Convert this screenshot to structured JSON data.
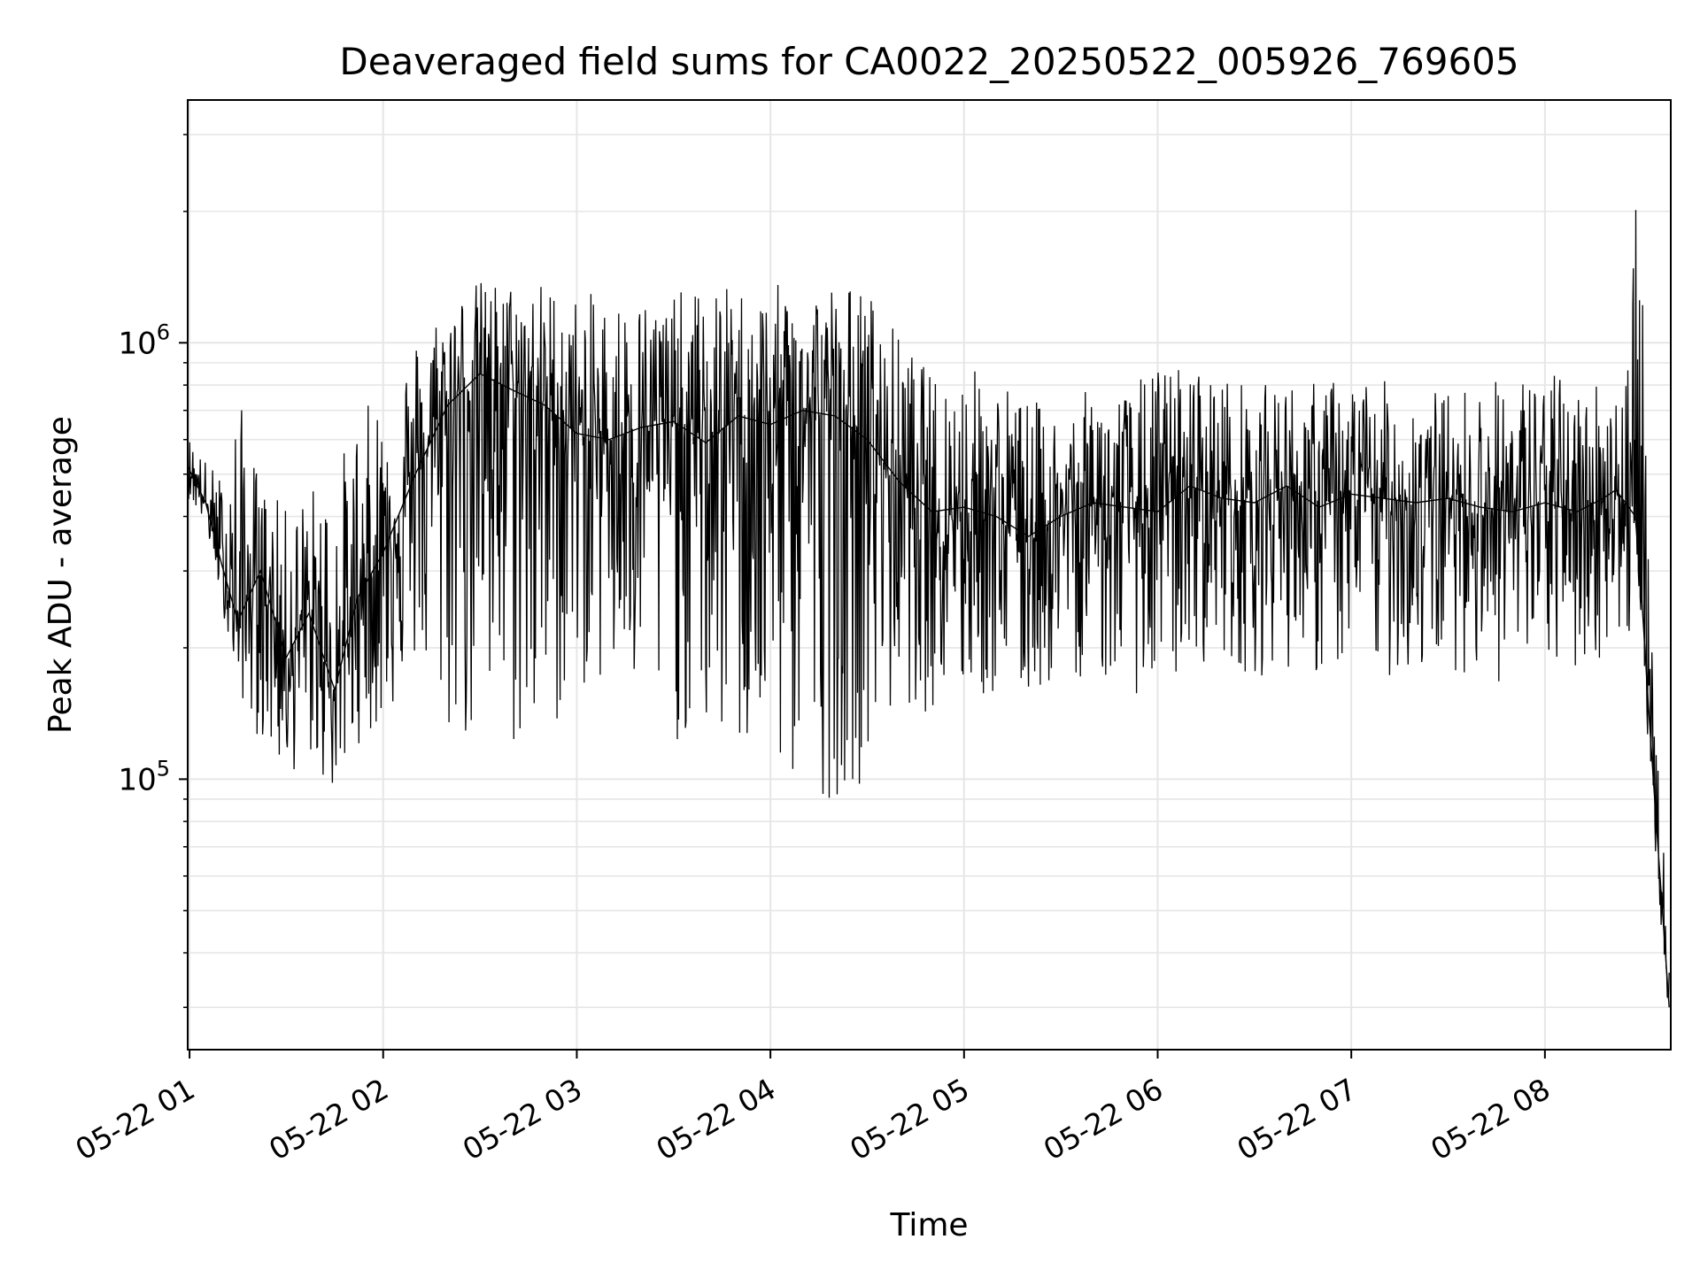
{
  "chart_data": {
    "type": "line",
    "title": "Deaveraged field sums for CA0022_20250522_005926_769605",
    "xlabel": "Time",
    "ylabel": "Peak ADU - average",
    "yscale": "log",
    "grid": true,
    "line_color": "#000000",
    "grid_color": "#e6e6e6",
    "xlim": [
      "2025-05-22T00:59:26",
      "2025-05-22T08:39:00"
    ],
    "ylim": [
      24000,
      3600000
    ],
    "x_tick_labels": [
      "05-22 01",
      "05-22 02",
      "05-22 03",
      "05-22 04",
      "05-22 05",
      "05-22 06",
      "05-22 07",
      "05-22 08"
    ],
    "x_ticks": [
      "2025-05-22T01:00",
      "2025-05-22T02:00",
      "2025-05-22T03:00",
      "2025-05-22T04:00",
      "2025-05-22T05:00",
      "2025-05-22T06:00",
      "2025-05-22T07:00",
      "2025-05-22T08:00"
    ],
    "y_ticks": [
      100000,
      1000000
    ],
    "y_tick_labels": [
      {
        "base": "10",
        "exp": "5"
      },
      {
        "base": "10",
        "exp": "6"
      }
    ],
    "series": [
      {
        "x": [
          "2025-05-22T00:59:30",
          "2025-05-22T01:05:00",
          "2025-05-22T01:10:00",
          "2025-05-22T01:15:00",
          "2025-05-22T01:22:00",
          "2025-05-22T01:30:00",
          "2025-05-22T01:37:00",
          "2025-05-22T01:45:00",
          "2025-05-22T01:52:00",
          "2025-05-22T02:00:00",
          "2025-05-22T02:10:00",
          "2025-05-22T02:20:00",
          "2025-05-22T02:30:00",
          "2025-05-22T02:40:00",
          "2025-05-22T02:50:00",
          "2025-05-22T03:00:00",
          "2025-05-22T03:10:00",
          "2025-05-22T03:20:00",
          "2025-05-22T03:30:00",
          "2025-05-22T03:40:00",
          "2025-05-22T03:50:00",
          "2025-05-22T04:00:00",
          "2025-05-22T04:10:00",
          "2025-05-22T04:20:00",
          "2025-05-22T04:30:00",
          "2025-05-22T04:40:00",
          "2025-05-22T04:50:00",
          "2025-05-22T05:00:00",
          "2025-05-22T05:10:00",
          "2025-05-22T05:20:00",
          "2025-05-22T05:30:00",
          "2025-05-22T05:40:00",
          "2025-05-22T05:50:00",
          "2025-05-22T06:00:00",
          "2025-05-22T06:10:00",
          "2025-05-22T06:20:00",
          "2025-05-22T06:30:00",
          "2025-05-22T06:40:00",
          "2025-05-22T06:50:00",
          "2025-05-22T07:00:00",
          "2025-05-22T07:10:00",
          "2025-05-22T07:20:00",
          "2025-05-22T07:30:00",
          "2025-05-22T07:40:00",
          "2025-05-22T07:50:00",
          "2025-05-22T08:00:00",
          "2025-05-22T08:10:00",
          "2025-05-22T08:18:00",
          "2025-05-22T08:22:00",
          "2025-05-22T08:26:00",
          "2025-05-22T08:28:00",
          "2025-05-22T08:30:00",
          "2025-05-22T08:32:00",
          "2025-05-22T08:34:00",
          "2025-05-22T08:36:00",
          "2025-05-22T08:38:30"
        ],
        "y": [
          520000,
          430000,
          310000,
          230000,
          300000,
          190000,
          240000,
          160000,
          260000,
          330000,
          500000,
          720000,
          850000,
          780000,
          720000,
          620000,
          600000,
          640000,
          660000,
          590000,
          680000,
          650000,
          700000,
          680000,
          600000,
          480000,
          410000,
          420000,
          400000,
          360000,
          400000,
          430000,
          420000,
          410000,
          470000,
          440000,
          430000,
          470000,
          420000,
          450000,
          440000,
          430000,
          440000,
          420000,
          410000,
          430000,
          410000,
          440000,
          460000,
          420000,
          400000,
          260000,
          150000,
          90000,
          55000,
          30000
        ],
        "y_low": [
          440000,
          380000,
          250000,
          160000,
          120000,
          100000,
          110000,
          90000,
          120000,
          130000,
          180000,
          120000,
          110000,
          110000,
          110000,
          160000,
          160000,
          140000,
          120000,
          120000,
          110000,
          100000,
          90000,
          90000,
          100000,
          150000,
          140000,
          150000,
          150000,
          150000,
          170000,
          170000,
          160000,
          150000,
          180000,
          190000,
          170000,
          180000,
          170000,
          180000,
          170000,
          170000,
          180000,
          170000,
          160000,
          180000,
          170000,
          190000,
          200000,
          200000,
          360000,
          210000,
          120000,
          70000,
          46000,
          28000
        ],
        "y_high": [
          620000,
          540000,
          500000,
          780000,
          480000,
          420000,
          470000,
          520000,
          680000,
          800000,
          1050000,
          1300000,
          1400000,
          1400000,
          1400000,
          1300000,
          1300000,
          1300000,
          1300000,
          1350000,
          1350000,
          1350000,
          1400000,
          1400000,
          1350000,
          1050000,
          850000,
          900000,
          850000,
          750000,
          700000,
          800000,
          780000,
          900000,
          900000,
          850000,
          800000,
          820000,
          820000,
          850000,
          820000,
          800000,
          780000,
          820000,
          850000,
          870000,
          820000,
          850000,
          800000,
          1200000,
          2600000,
          1900000,
          320000,
          150000,
          80000,
          50000
        ]
      }
    ]
  }
}
